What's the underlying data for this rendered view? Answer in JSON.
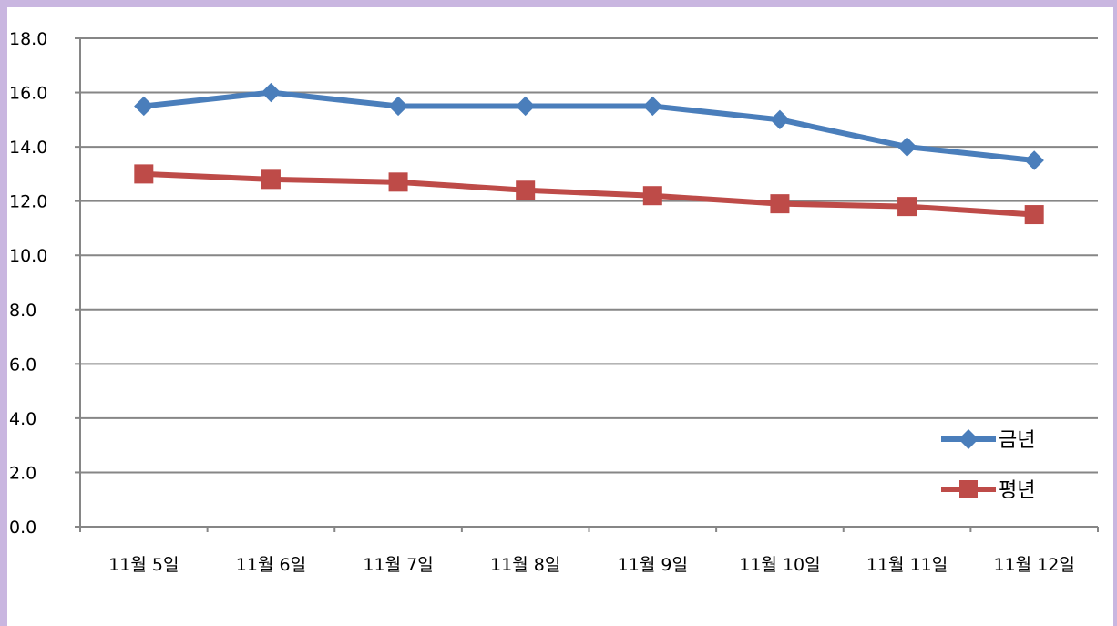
{
  "chart_data": {
    "type": "line",
    "title": "",
    "xlabel": "",
    "ylabel": "",
    "categories": [
      "11월 5일",
      "11월 6일",
      "11월 7일",
      "11월 8일",
      "11월 9일",
      "11월 10일",
      "11월 11일",
      "11월 12일"
    ],
    "series": [
      {
        "name": "금년",
        "values": [
          15.5,
          16.0,
          15.5,
          15.5,
          15.5,
          15.0,
          14.0,
          13.5
        ],
        "color": "#4a7ebb",
        "marker": "diamond"
      },
      {
        "name": "평년",
        "values": [
          13.0,
          12.8,
          12.7,
          12.4,
          12.2,
          11.9,
          11.8,
          11.5
        ],
        "color": "#be4b48",
        "marker": "square"
      }
    ],
    "ylim": [
      0,
      18
    ],
    "y_ticks": [
      "0.0",
      "2.0",
      "4.0",
      "6.0",
      "8.0",
      "10.0",
      "12.0",
      "14.0",
      "16.0",
      "18.0"
    ],
    "grid": true,
    "legend_position": "bottom-right",
    "colors": {
      "frame": "#c9b6e0",
      "grid": "#868686"
    }
  }
}
